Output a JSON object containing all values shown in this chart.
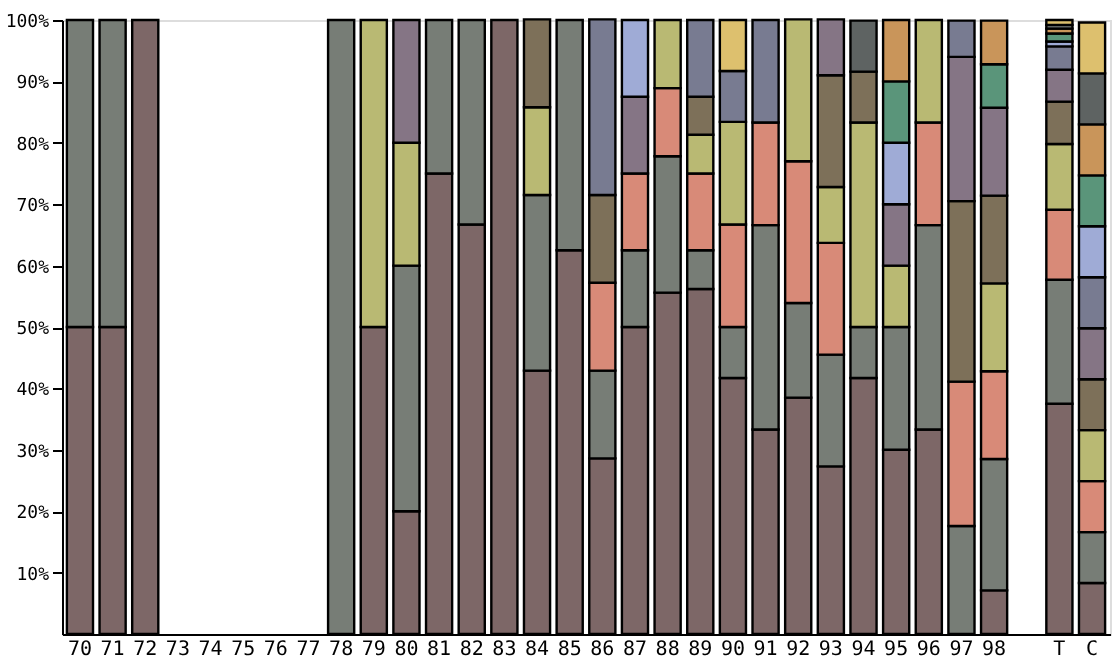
{
  "chart_data": {
    "type": "bar",
    "stacked": true,
    "categories": [
      "70",
      "71",
      "72",
      "73",
      "74",
      "75",
      "76",
      "77",
      "78",
      "79",
      "80",
      "81",
      "82",
      "83",
      "84",
      "85",
      "86",
      "87",
      "88",
      "89",
      "90",
      "91",
      "92",
      "93",
      "94",
      "95",
      "96",
      "97",
      "98",
      null,
      "T",
      "C"
    ],
    "series": [
      {
        "color": "#7d6767",
        "values": [
          50,
          50,
          100,
          null,
          null,
          null,
          null,
          null,
          null,
          50,
          20,
          75,
          66.7,
          100,
          42.9,
          62.5,
          28.6,
          50,
          55.6,
          56.2,
          41.7,
          33.3,
          38.5,
          27.3,
          41.7,
          30,
          33.3,
          null,
          7.1,
          null,
          37.5,
          8.3
        ]
      },
      {
        "color": "#777d76",
        "values": [
          50,
          50,
          null,
          null,
          null,
          null,
          null,
          null,
          100,
          null,
          40,
          25,
          33.3,
          null,
          28.6,
          37.5,
          14.3,
          12.5,
          22.2,
          6.3,
          8.3,
          33.3,
          15.4,
          18.2,
          8.3,
          20,
          33.3,
          17.6,
          21.4,
          null,
          20.2,
          8.3
        ]
      },
      {
        "color": "#d88a78",
        "values": [
          null,
          null,
          null,
          null,
          null,
          null,
          null,
          null,
          null,
          null,
          null,
          null,
          null,
          null,
          null,
          null,
          14.3,
          12.5,
          11.1,
          12.5,
          16.7,
          16.7,
          23.1,
          18.2,
          null,
          null,
          16.7,
          23.5,
          14.3,
          null,
          11.4,
          8.3
        ]
      },
      {
        "color": "#b9b973",
        "values": [
          null,
          null,
          null,
          null,
          null,
          null,
          null,
          null,
          null,
          50,
          20,
          null,
          null,
          null,
          14.3,
          null,
          null,
          null,
          11.1,
          6.3,
          16.7,
          null,
          23.1,
          9.1,
          33.3,
          10,
          16.7,
          null,
          14.3,
          null,
          10.7,
          8.3
        ]
      },
      {
        "color": "#7d7059",
        "values": [
          null,
          null,
          null,
          null,
          null,
          null,
          null,
          null,
          null,
          null,
          null,
          null,
          null,
          null,
          14.3,
          null,
          14.3,
          null,
          null,
          6.2,
          null,
          null,
          null,
          18.2,
          8.3,
          null,
          null,
          29.4,
          14.3,
          null,
          6.9,
          8.3
        ]
      },
      {
        "color": "#857585",
        "values": [
          null,
          null,
          null,
          null,
          null,
          null,
          null,
          null,
          null,
          null,
          20,
          null,
          null,
          null,
          null,
          null,
          null,
          12.5,
          null,
          null,
          null,
          null,
          null,
          9.1,
          null,
          10,
          null,
          23.5,
          14.3,
          null,
          5.2,
          8.3
        ]
      },
      {
        "color": "#787b91",
        "values": [
          null,
          null,
          null,
          null,
          null,
          null,
          null,
          null,
          null,
          null,
          null,
          null,
          null,
          null,
          null,
          null,
          28.6,
          null,
          null,
          12.5,
          8.3,
          16.7,
          null,
          null,
          null,
          null,
          null,
          5.9,
          null,
          null,
          3.8,
          8.3
        ]
      },
      {
        "color": "#9fabd6",
        "values": [
          null,
          null,
          null,
          null,
          null,
          null,
          null,
          null,
          null,
          null,
          null,
          null,
          null,
          null,
          null,
          null,
          null,
          12.5,
          null,
          null,
          null,
          null,
          null,
          null,
          null,
          10,
          null,
          null,
          null,
          null,
          0.8,
          8.3
        ]
      },
      {
        "color": "#5a957a",
        "values": [
          null,
          null,
          null,
          null,
          null,
          null,
          null,
          null,
          null,
          null,
          null,
          null,
          null,
          null,
          null,
          null,
          null,
          null,
          null,
          null,
          null,
          null,
          null,
          null,
          null,
          10,
          null,
          null,
          7.1,
          null,
          1.3,
          8.3
        ]
      },
      {
        "color": "#c9955a",
        "values": [
          null,
          null,
          null,
          null,
          null,
          null,
          null,
          null,
          null,
          null,
          null,
          null,
          null,
          null,
          null,
          null,
          null,
          null,
          null,
          null,
          null,
          null,
          null,
          null,
          null,
          10,
          null,
          null,
          7.1,
          null,
          0.8,
          8.3
        ]
      },
      {
        "color": "#5e6362",
        "values": [
          null,
          null,
          null,
          null,
          null,
          null,
          null,
          null,
          null,
          null,
          null,
          null,
          null,
          null,
          null,
          null,
          null,
          null,
          null,
          null,
          null,
          null,
          null,
          null,
          8.3,
          null,
          null,
          null,
          null,
          null,
          0.6,
          8.3
        ]
      },
      {
        "color": "#ddc06e",
        "values": [
          null,
          null,
          null,
          null,
          null,
          null,
          null,
          null,
          null,
          null,
          null,
          null,
          null,
          null,
          null,
          null,
          null,
          null,
          null,
          null,
          8.3,
          null,
          null,
          null,
          null,
          null,
          null,
          null,
          null,
          null,
          0.8,
          8.3
        ]
      }
    ],
    "ylim": [
      0,
      100
    ],
    "yticks": [
      {
        "value": 10,
        "label": "10%"
      },
      {
        "value": 20,
        "label": "20%"
      },
      {
        "value": 30,
        "label": "30%"
      },
      {
        "value": 40,
        "label": "40%"
      },
      {
        "value": 50,
        "label": "50%"
      },
      {
        "value": 60,
        "label": "60%"
      },
      {
        "value": 70,
        "label": "70%"
      },
      {
        "value": 80,
        "label": "80%"
      },
      {
        "value": 90,
        "label": "90%"
      },
      {
        "value": 100,
        "label": "100%"
      }
    ],
    "grid": false,
    "legend": false
  }
}
